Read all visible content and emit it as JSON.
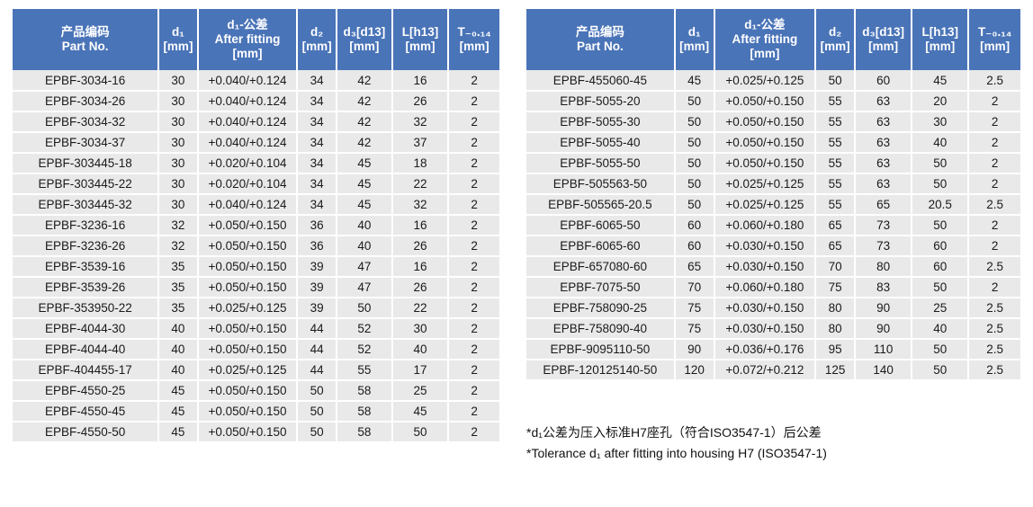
{
  "theme": {
    "header_bg": "#4a74b8",
    "header_text_color": "#ffffff",
    "row_bg": "#e9e9e9"
  },
  "table_header": {
    "columns": [
      {
        "lines": [
          "产品编码",
          "Part No."
        ]
      },
      {
        "lines": [
          "d₁",
          "[mm]"
        ]
      },
      {
        "lines": [
          "d₁-公差",
          "After fitting",
          "[mm]"
        ]
      },
      {
        "lines": [
          "d₂",
          "[mm]"
        ]
      },
      {
        "lines": [
          "d₃[d13]",
          "[mm]"
        ]
      },
      {
        "lines": [
          "L[h13]",
          "[mm]"
        ]
      },
      {
        "lines": [
          "T₋₀.₁₄",
          "[mm]"
        ]
      }
    ]
  },
  "left_table": {
    "rows": [
      [
        "EPBF-3034-16",
        "30",
        "+0.040/+0.124",
        "34",
        "42",
        "16",
        "2"
      ],
      [
        "EPBF-3034-26",
        "30",
        "+0.040/+0.124",
        "34",
        "42",
        "26",
        "2"
      ],
      [
        "EPBF-3034-32",
        "30",
        "+0.040/+0.124",
        "34",
        "42",
        "32",
        "2"
      ],
      [
        "EPBF-3034-37",
        "30",
        "+0.040/+0.124",
        "34",
        "42",
        "37",
        "2"
      ],
      [
        "EPBF-303445-18",
        "30",
        "+0.020/+0.104",
        "34",
        "45",
        "18",
        "2"
      ],
      [
        "EPBF-303445-22",
        "30",
        "+0.020/+0.104",
        "34",
        "45",
        "22",
        "2"
      ],
      [
        "EPBF-303445-32",
        "30",
        "+0.040/+0.124",
        "34",
        "45",
        "32",
        "2"
      ],
      [
        "EPBF-3236-16",
        "32",
        "+0.050/+0.150",
        "36",
        "40",
        "16",
        "2"
      ],
      [
        "EPBF-3236-26",
        "32",
        "+0.050/+0.150",
        "36",
        "40",
        "26",
        "2"
      ],
      [
        "EPBF-3539-16",
        "35",
        "+0.050/+0.150",
        "39",
        "47",
        "16",
        "2"
      ],
      [
        "EPBF-3539-26",
        "35",
        "+0.050/+0.150",
        "39",
        "47",
        "26",
        "2"
      ],
      [
        "EPBF-353950-22",
        "35",
        "+0.025/+0.125",
        "39",
        "50",
        "22",
        "2"
      ],
      [
        "EPBF-4044-30",
        "40",
        "+0.050/+0.150",
        "44",
        "52",
        "30",
        "2"
      ],
      [
        "EPBF-4044-40",
        "40",
        "+0.050/+0.150",
        "44",
        "52",
        "40",
        "2"
      ],
      [
        "EPBF-404455-17",
        "40",
        "+0.025/+0.125",
        "44",
        "55",
        "17",
        "2"
      ],
      [
        "EPBF-4550-25",
        "45",
        "+0.050/+0.150",
        "50",
        "58",
        "25",
        "2"
      ],
      [
        "EPBF-4550-45",
        "45",
        "+0.050/+0.150",
        "50",
        "58",
        "45",
        "2"
      ],
      [
        "EPBF-4550-50",
        "45",
        "+0.050/+0.150",
        "50",
        "58",
        "50",
        "2"
      ]
    ]
  },
  "right_table": {
    "rows": [
      [
        "EPBF-455060-45",
        "45",
        "+0.025/+0.125",
        "50",
        "60",
        "45",
        "2.5"
      ],
      [
        "EPBF-5055-20",
        "50",
        "+0.050/+0.150",
        "55",
        "63",
        "20",
        "2"
      ],
      [
        "EPBF-5055-30",
        "50",
        "+0.050/+0.150",
        "55",
        "63",
        "30",
        "2"
      ],
      [
        "EPBF-5055-40",
        "50",
        "+0.050/+0.150",
        "55",
        "63",
        "40",
        "2"
      ],
      [
        "EPBF-5055-50",
        "50",
        "+0.050/+0.150",
        "55",
        "63",
        "50",
        "2"
      ],
      [
        "EPBF-505563-50",
        "50",
        "+0.025/+0.125",
        "55",
        "63",
        "50",
        "2"
      ],
      [
        "EPBF-505565-20.5",
        "50",
        "+0.025/+0.125",
        "55",
        "65",
        "20.5",
        "2.5"
      ],
      [
        "EPBF-6065-50",
        "60",
        "+0.060/+0.180",
        "65",
        "73",
        "50",
        "2"
      ],
      [
        "EPBF-6065-60",
        "60",
        "+0.030/+0.150",
        "65",
        "73",
        "60",
        "2"
      ],
      [
        "EPBF-657080-60",
        "65",
        "+0.030/+0.150",
        "70",
        "80",
        "60",
        "2.5"
      ],
      [
        "EPBF-7075-50",
        "70",
        "+0.060/+0.180",
        "75",
        "83",
        "50",
        "2"
      ],
      [
        "EPBF-758090-25",
        "75",
        "+0.030/+0.150",
        "80",
        "90",
        "25",
        "2.5"
      ],
      [
        "EPBF-758090-40",
        "75",
        "+0.030/+0.150",
        "80",
        "90",
        "40",
        "2.5"
      ],
      [
        "EPBF-9095110-50",
        "90",
        "+0.036/+0.176",
        "95",
        "110",
        "50",
        "2.5"
      ],
      [
        "EPBF-120125140-50",
        "120",
        "+0.072/+0.212",
        "125",
        "140",
        "50",
        "2.5"
      ]
    ]
  },
  "footnote": {
    "line1": "*d₁公差为压入标准H7座孔（符合ISO3547-1）后公差",
    "line2": "*Tolerance d₁ after fitting into housing H7 (ISO3547-1)"
  }
}
